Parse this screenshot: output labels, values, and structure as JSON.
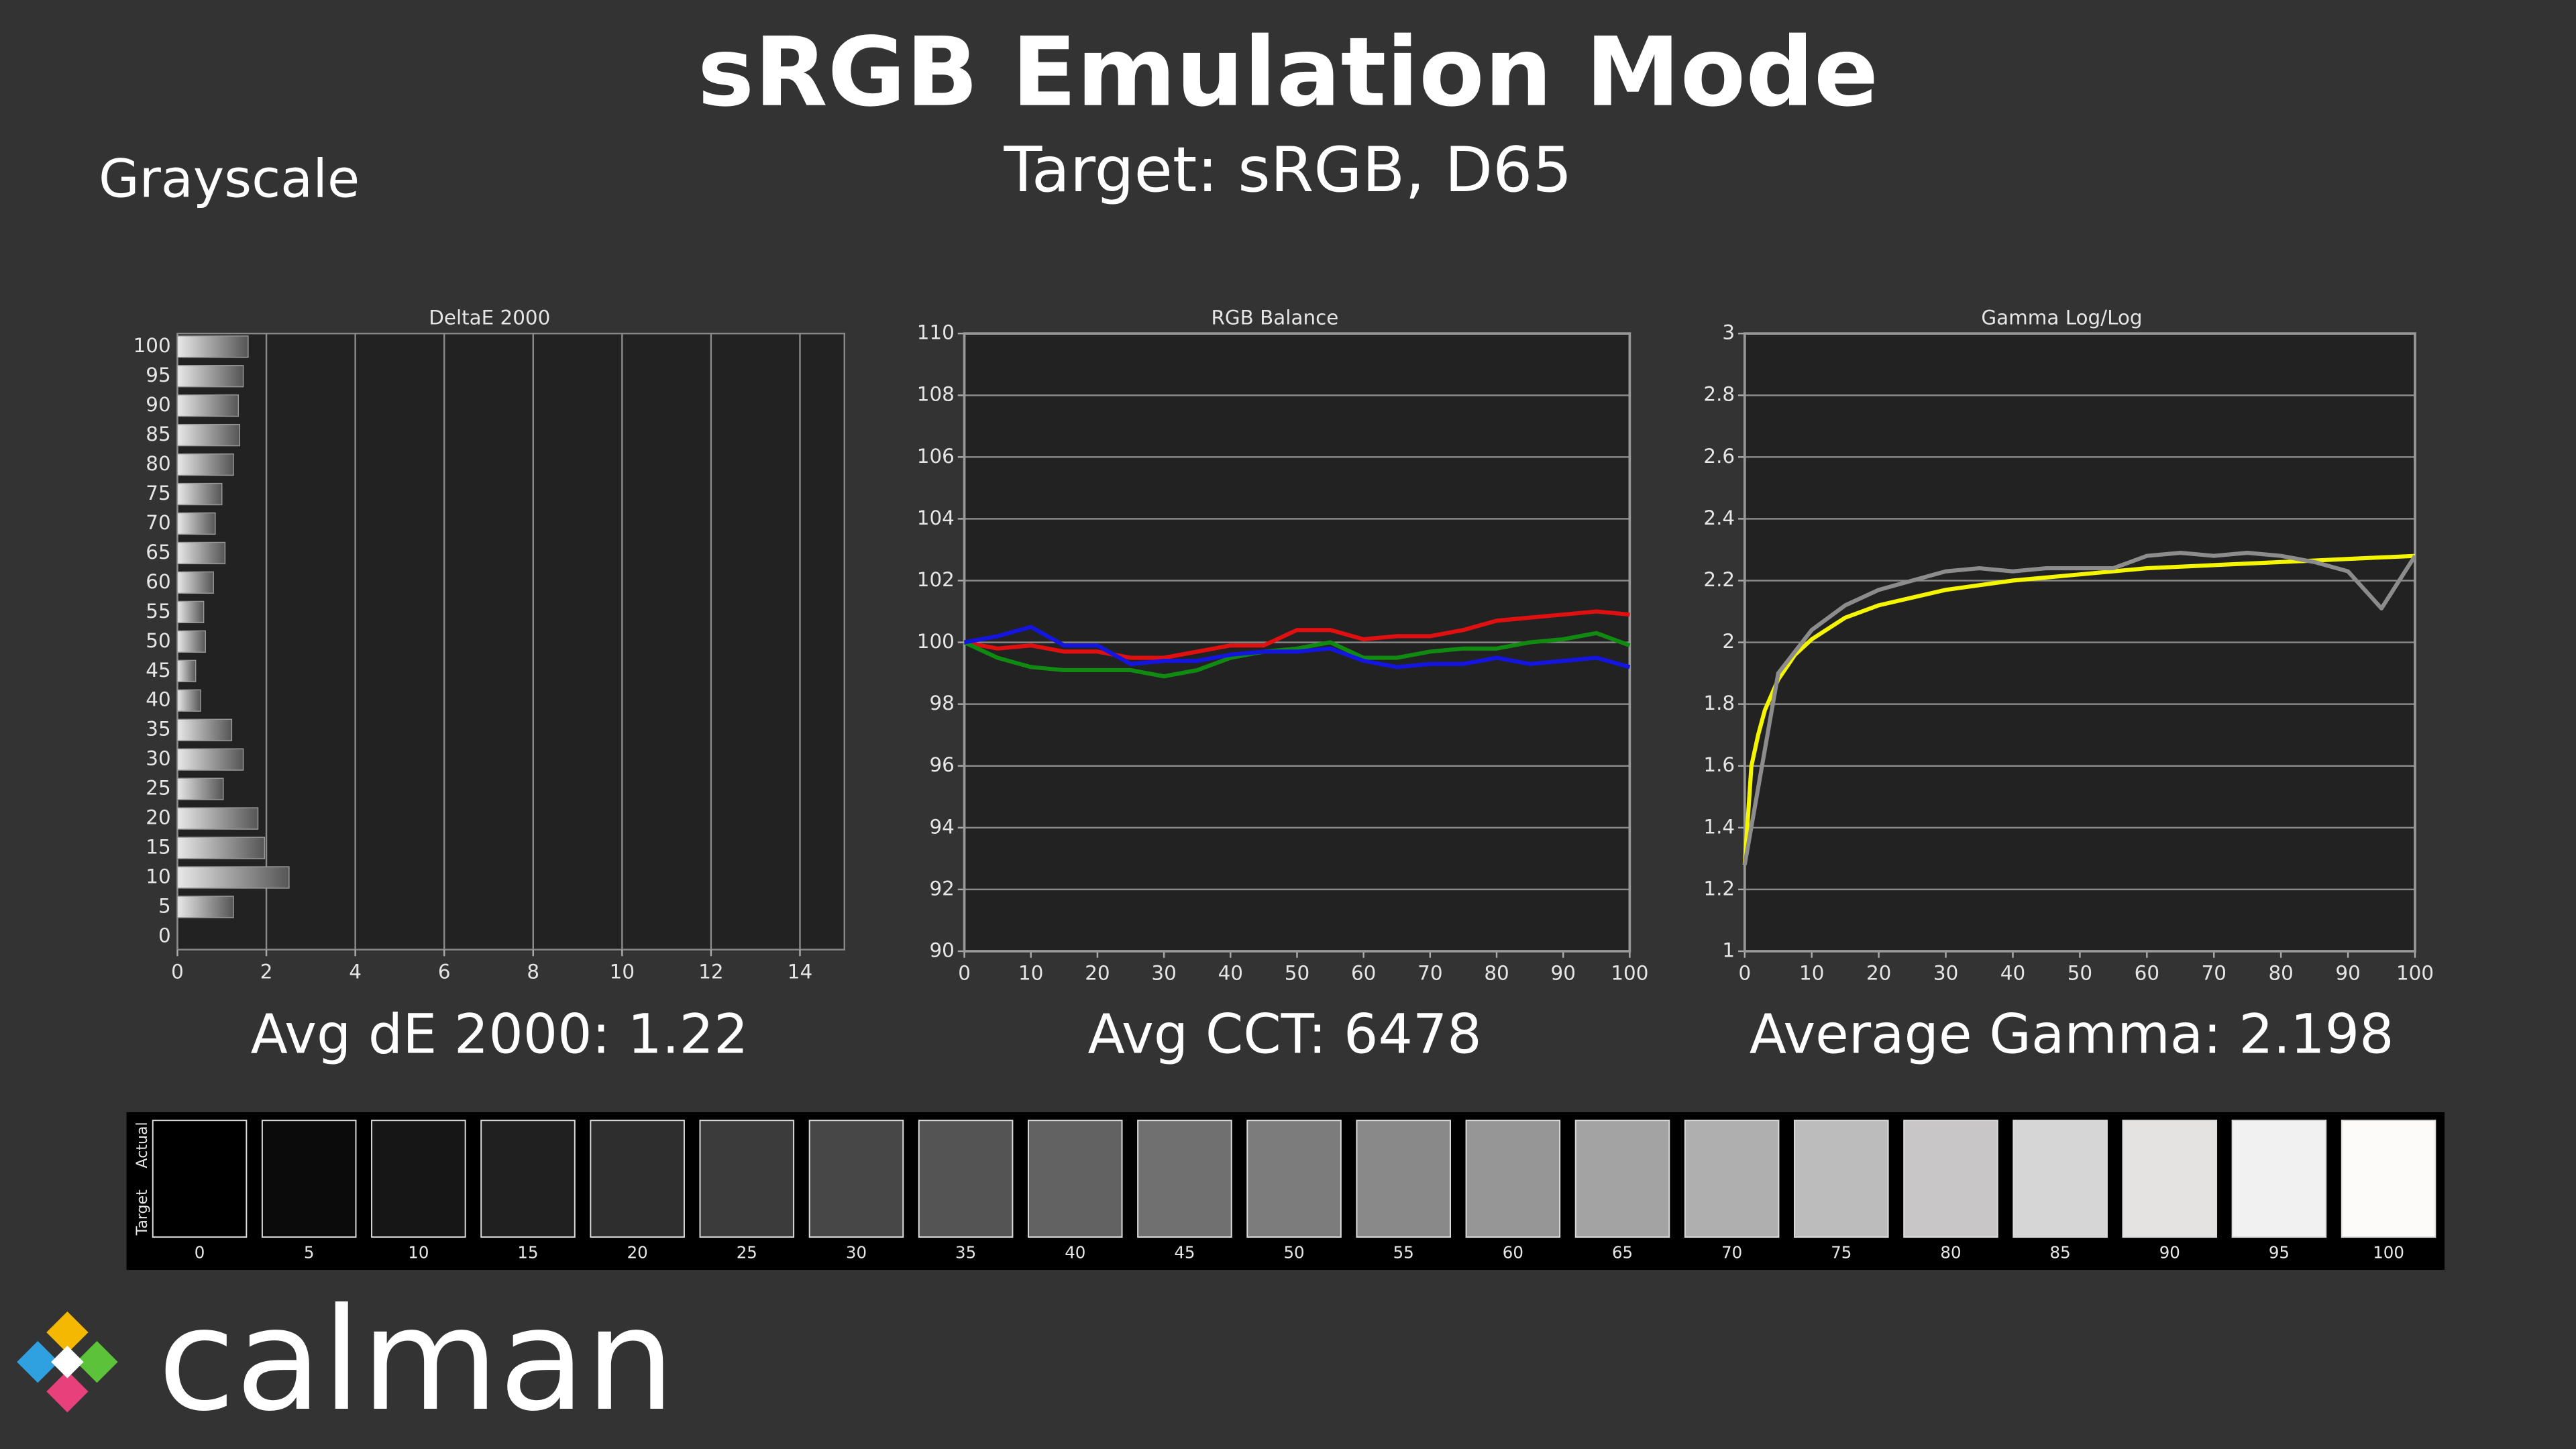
{
  "title": "sRGB Emulation Mode",
  "subtitle": "Target: sRGB, D65",
  "section": "Grayscale",
  "summaries": [
    "Avg dE 2000: 1.22",
    "Avg CCT: 6478",
    "Average Gamma: 2.198"
  ],
  "swatches": {
    "row_labels": [
      "Actual",
      "Target"
    ],
    "items": [
      {
        "label": "0",
        "color": "#000000"
      },
      {
        "label": "5",
        "color": "#0b0b0b"
      },
      {
        "label": "10",
        "color": "#161616"
      },
      {
        "label": "15",
        "color": "#202020"
      },
      {
        "label": "20",
        "color": "#2e2e2e"
      },
      {
        "label": "25",
        "color": "#3b3b3b"
      },
      {
        "label": "30",
        "color": "#474747"
      },
      {
        "label": "35",
        "color": "#545454"
      },
      {
        "label": "40",
        "color": "#626262"
      },
      {
        "label": "45",
        "color": "#707070"
      },
      {
        "label": "50",
        "color": "#7c7c7c"
      },
      {
        "label": "55",
        "color": "#898989"
      },
      {
        "label": "60",
        "color": "#969696"
      },
      {
        "label": "65",
        "color": "#a3a3a3"
      },
      {
        "label": "70",
        "color": "#afafaf"
      },
      {
        "label": "75",
        "color": "#bcbcbc"
      },
      {
        "label": "80",
        "color": "#c8c6c6"
      },
      {
        "label": "85",
        "color": "#d6d6d6"
      },
      {
        "label": "90",
        "color": "#e5e3e2"
      },
      {
        "label": "95",
        "color": "#f1f1f1"
      },
      {
        "label": "100",
        "color": "#fcfbfa"
      }
    ]
  },
  "logo": "calman",
  "chart_data": [
    {
      "type": "bar",
      "orientation": "horizontal",
      "title": "DeltaE 2000",
      "color": "#e8e8e8",
      "grid": true,
      "categories": [
        "0",
        "5",
        "10",
        "15",
        "20",
        "25",
        "30",
        "35",
        "40",
        "45",
        "50",
        "55",
        "60",
        "65",
        "70",
        "75",
        "80",
        "85",
        "90",
        "95",
        "100"
      ],
      "values": [
        0,
        1.26,
        2.51,
        1.96,
        1.81,
        1.03,
        1.48,
        1.22,
        0.52,
        0.41,
        0.63,
        0.59,
        0.81,
        1.07,
        0.85,
        1.0,
        1.26,
        1.4,
        1.37,
        1.48,
        1.59
      ],
      "xlim": [
        0,
        15
      ],
      "xticks": [
        0,
        2,
        4,
        6,
        8,
        10,
        12,
        14
      ]
    },
    {
      "type": "line",
      "title": "RGB Balance",
      "grid": true,
      "x": [
        0,
        5,
        10,
        15,
        20,
        25,
        30,
        35,
        40,
        45,
        50,
        55,
        60,
        65,
        70,
        75,
        80,
        85,
        90,
        95,
        100
      ],
      "series": [
        {
          "color": "#e01010",
          "values": [
            100,
            99.8,
            99.9,
            99.7,
            99.7,
            99.5,
            99.5,
            99.7,
            99.9,
            99.9,
            100.4,
            100.4,
            100.1,
            100.2,
            100.2,
            100.4,
            100.7,
            100.8,
            100.9,
            101.0,
            100.9
          ]
        },
        {
          "color": "#108a10",
          "values": [
            100,
            99.5,
            99.2,
            99.1,
            99.1,
            99.1,
            98.9,
            99.1,
            99.5,
            99.7,
            99.8,
            100,
            99.5,
            99.5,
            99.7,
            99.8,
            99.8,
            100,
            100.1,
            100.3,
            99.9
          ]
        },
        {
          "color": "#1515e0",
          "values": [
            100,
            100.2,
            100.5,
            99.9,
            99.9,
            99.3,
            99.4,
            99.4,
            99.6,
            99.7,
            99.7,
            99.8,
            99.4,
            99.2,
            99.3,
            99.3,
            99.5,
            99.3,
            99.4,
            99.5,
            99.2
          ]
        }
      ],
      "xlim": [
        0,
        100
      ],
      "xticks": [
        0,
        10,
        20,
        30,
        40,
        50,
        60,
        70,
        80,
        90,
        100
      ],
      "ylim": [
        90,
        110
      ],
      "yticks": [
        90,
        92,
        94,
        96,
        98,
        100,
        102,
        104,
        106,
        108,
        110
      ]
    },
    {
      "type": "line",
      "title": "Gamma Log/Log",
      "grid": true,
      "series": [
        {
          "color": "#f5f500",
          "x": [
            0,
            1,
            2,
            3,
            5,
            7.5,
            10,
            15,
            20,
            30,
            40,
            50,
            60,
            70,
            80,
            90,
            100
          ],
          "values": [
            1.28,
            1.6,
            1.7,
            1.78,
            1.88,
            1.96,
            2.01,
            2.08,
            2.12,
            2.17,
            2.2,
            2.22,
            2.24,
            2.25,
            2.26,
            2.27,
            2.28
          ]
        },
        {
          "color": "#8c8c8c",
          "x": [
            0,
            5,
            10,
            15,
            20,
            25,
            30,
            35,
            40,
            45,
            50,
            55,
            60,
            65,
            70,
            75,
            80,
            85,
            90,
            95,
            100
          ],
          "values": [
            1.28,
            1.9,
            2.04,
            2.12,
            2.17,
            2.2,
            2.23,
            2.24,
            2.23,
            2.24,
            2.24,
            2.24,
            2.28,
            2.29,
            2.28,
            2.29,
            2.28,
            2.26,
            2.23,
            2.11,
            2.28
          ]
        }
      ],
      "xlim": [
        0,
        100
      ],
      "xticks": [
        0,
        10,
        20,
        30,
        40,
        50,
        60,
        70,
        80,
        90,
        100
      ],
      "ylim": [
        1,
        3
      ],
      "yticks": [
        1,
        1.2,
        1.4,
        1.6,
        1.8,
        2,
        2.2,
        2.4,
        2.6,
        2.8,
        3
      ]
    }
  ]
}
